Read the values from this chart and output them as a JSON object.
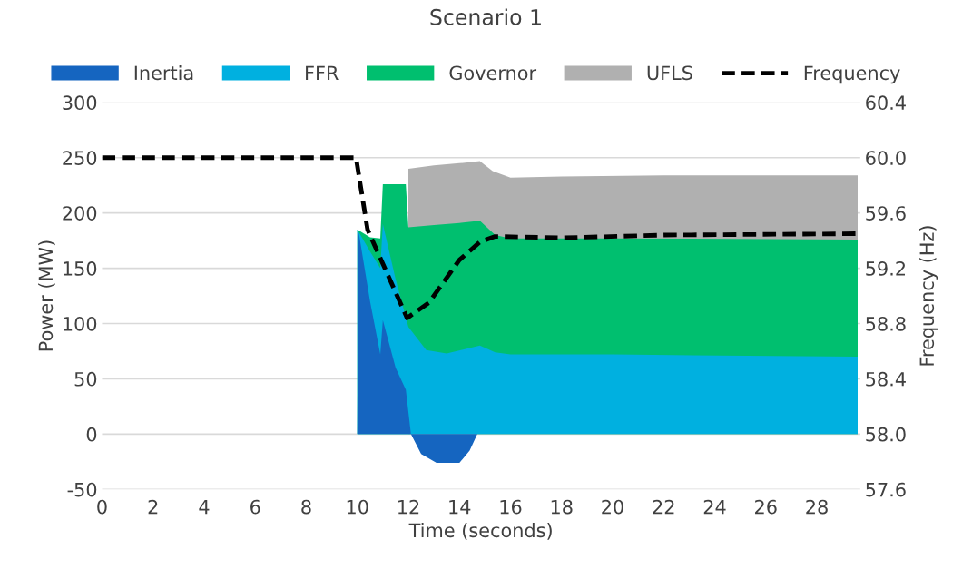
{
  "chart_data": {
    "type": "area",
    "title": "Scenario 1",
    "xlabel": "Time (seconds)",
    "ylabel": "Power (MW)",
    "y2label": "Frequency (Hz)",
    "xlim": [
      0,
      29.7
    ],
    "xticks": [
      0,
      2,
      4,
      6,
      8,
      10,
      12,
      14,
      16,
      18,
      20,
      22,
      24,
      26,
      28
    ],
    "ylim": [
      -50,
      300
    ],
    "yticks": [
      {
        "value": -50,
        "label": "-50"
      },
      0,
      50,
      100,
      150,
      200,
      250,
      300
    ],
    "y2lim": [
      57.6,
      60.4
    ],
    "y2ticks": [
      57.6,
      {
        "value": 58,
        "label": "58.0"
      },
      58.4,
      58.8,
      59.2,
      59.6,
      {
        "value": 60,
        "label": "60.0"
      },
      60.4
    ],
    "grid": "y",
    "legend": "top",
    "series": [
      {
        "name": "UFLS",
        "color": "#b0b0b0",
        "x": [
          12,
          13,
          14,
          14.8,
          15.3,
          16,
          18,
          22,
          29.6
        ],
        "values": [
          240,
          243,
          245,
          247,
          238,
          232,
          233,
          234,
          234
        ]
      },
      {
        "name": "Governor",
        "color": "#00bf6f",
        "x": [
          10,
          10.5,
          10.9,
          11,
          11.9,
          12,
          13,
          14,
          14.8,
          15.4,
          16,
          20,
          29.6
        ],
        "values": [
          185,
          178,
          177,
          226,
          226,
          187,
          189,
          191,
          193,
          180,
          177,
          177,
          176
        ]
      },
      {
        "name": "FFR",
        "color": "#00b0e0",
        "x": [
          10,
          10.5,
          10.9,
          11,
          11.5,
          12,
          12.7,
          13.5,
          14.8,
          15.4,
          16,
          20,
          29.6
        ],
        "values": [
          185,
          165,
          150,
          190,
          140,
          97,
          76,
          73,
          80,
          74,
          72,
          72,
          70
        ]
      },
      {
        "name": "Inertia",
        "color": "#1565c0",
        "x": [
          10,
          10.05,
          10.5,
          10.9,
          11,
          11.5,
          11.9,
          12.1,
          12.5,
          13.1,
          14.0,
          14.4,
          14.7
        ],
        "values": [
          0,
          183,
          120,
          72,
          103,
          60,
          40,
          0,
          -18,
          -26,
          -26,
          -15,
          0
        ]
      },
      {
        "name": "Frequency",
        "type": "line",
        "axis": "y2",
        "color": "#000000",
        "line_style": "dashed",
        "x": [
          0,
          9.95,
          10.4,
          11.95,
          12.8,
          14.0,
          14.8,
          15.4,
          18,
          22,
          29.7
        ],
        "values": [
          60.0,
          60.0,
          59.48,
          58.84,
          58.95,
          59.26,
          59.39,
          59.43,
          59.42,
          59.44,
          59.45
        ]
      }
    ]
  }
}
